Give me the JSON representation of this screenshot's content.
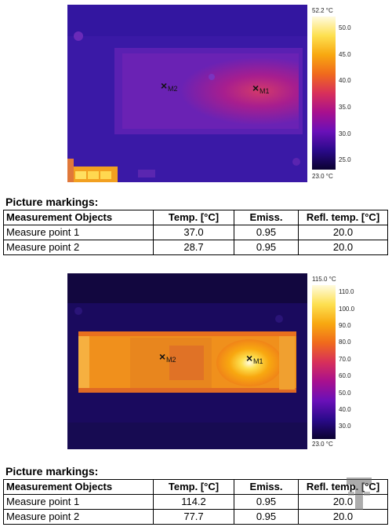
{
  "image1": {
    "scale": {
      "max_label": "52.2 °C",
      "min_label": "23.0 °C",
      "ticks": [
        "50.0",
        "45.0",
        "40.0",
        "35.0",
        "30.0",
        "25.0"
      ]
    },
    "markers": [
      {
        "label": "M2"
      },
      {
        "label": "M1"
      }
    ]
  },
  "table1": {
    "title": "Picture markings:",
    "headers": [
      "Measurement Objects",
      "Temp. [°C]",
      "Emiss.",
      "Refl. temp. [°C]"
    ],
    "rows": [
      [
        "Measure point 1",
        "37.0",
        "0.95",
        "20.0"
      ],
      [
        "Measure point 2",
        "28.7",
        "0.95",
        "20.0"
      ]
    ]
  },
  "image2": {
    "scale": {
      "max_label": "115.0 °C",
      "min_label": "23.0 °C",
      "ticks": [
        "110.0",
        "100.0",
        "90.0",
        "80.0",
        "70.0",
        "60.0",
        "50.0",
        "40.0",
        "30.0"
      ]
    },
    "markers": [
      {
        "label": "M2"
      },
      {
        "label": "M1"
      }
    ]
  },
  "table2": {
    "title": "Picture markings:",
    "headers": [
      "Measurement Objects",
      "Temp. [°C]",
      "Emiss.",
      "Refl. temp. [°C]"
    ],
    "rows": [
      [
        "Measure point 1",
        "114.2",
        "0.95",
        "20.0"
      ],
      [
        "Measure point 2",
        "77.7",
        "0.95",
        "20.0"
      ]
    ]
  },
  "colors": {
    "ironbow": [
      "#0b0230",
      "#2a0a8a",
      "#6a10b8",
      "#a8108e",
      "#d8305a",
      "#f06a1c",
      "#f8a810",
      "#fde050",
      "#fffbe0"
    ]
  },
  "watermark": {
    "icon": "tweaktown-logo-icon"
  }
}
